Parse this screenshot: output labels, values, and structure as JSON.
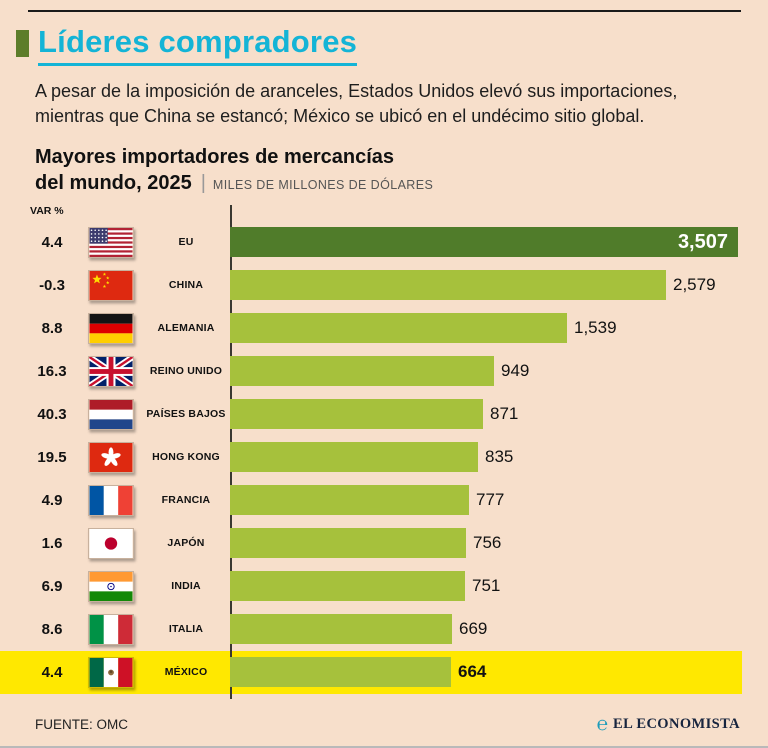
{
  "header": {
    "title": "Líderes compradores",
    "accent_color": "#14b4d6",
    "bullet_color": "#5d7d2a"
  },
  "intro": {
    "line1": "A pesar de la imposición de aranceles, Estados Unidos elevó sus importaciones,",
    "line2": "mientras que China se estancó; México se ubicó en el undécimo sitio global."
  },
  "chart": {
    "title_line1": "Mayores importadores de mercancías",
    "title_line2": "del mundo, 2025",
    "divider": "|",
    "units_label": "MILES DE MILLONES DE DÓLARES",
    "var_header": "VAR %"
  },
  "chart_data": {
    "type": "bar",
    "orientation": "horizontal",
    "title": "Mayores importadores de mercancías del mundo, 2025",
    "units": "Miles de millones de dólares",
    "categories": [
      "EU",
      "CHINA",
      "ALEMANIA",
      "REINO UNIDO",
      "PAÍSES BAJOS",
      "HONG KONG",
      "FRANCIA",
      "JAPÓN",
      "INDIA",
      "ITALIA",
      "MÉXICO"
    ],
    "values": [
      3507,
      2579,
      1539,
      949,
      871,
      835,
      777,
      756,
      751,
      669,
      664
    ],
    "value_labels": [
      "3,507",
      "2,579",
      "1,539",
      "949",
      "871",
      "835",
      "777",
      "756",
      "751",
      "669",
      "664"
    ],
    "var_percent": [
      4.4,
      -0.3,
      8.8,
      16.3,
      40.3,
      19.5,
      4.9,
      1.6,
      6.9,
      8.6,
      4.4
    ],
    "var_labels": [
      "4.4",
      "-0.3",
      "8.8",
      "16.3",
      "40.3",
      "19.5",
      "4.9",
      "1.6",
      "6.9",
      "8.6",
      "4.4"
    ],
    "flags": [
      "us",
      "cn",
      "de",
      "gb",
      "nl",
      "hk",
      "fr",
      "jp",
      "in",
      "it",
      "mx"
    ],
    "highlight_category": "MÉXICO",
    "xlim": [
      0,
      3507
    ],
    "grid": false,
    "legend": false,
    "colors": {
      "bar_leader": "#507c2a",
      "bar_default": "#a6c13c",
      "highlight_row": "#ffe800"
    }
  },
  "footer": {
    "source": "FUENTE: OMC",
    "brand_glyph": "℮",
    "brand": "EL ECONOMISTA"
  }
}
